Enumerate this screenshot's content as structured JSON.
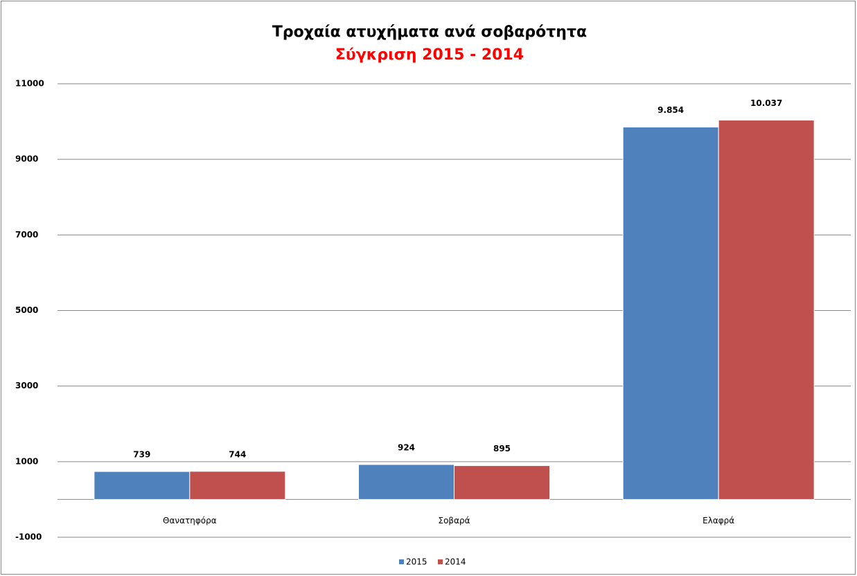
{
  "chart_data": {
    "type": "bar",
    "title": "Τροχαία ατυχήματα ανά σοβαρότητα",
    "subtitle": "Σύγκριση 2015 - 2014",
    "categories": [
      "Θανατηφόρα",
      "Σοβαρά",
      "Ελαφρά"
    ],
    "series": [
      {
        "name": "2015",
        "color": "#4f81bd",
        "values": [
          739,
          924,
          9854
        ],
        "value_labels": [
          "739",
          "924",
          "9.854"
        ]
      },
      {
        "name": "2014",
        "color": "#c0504d",
        "values": [
          744,
          895,
          10037
        ],
        "value_labels": [
          "744",
          "895",
          "10.037"
        ]
      }
    ],
    "ylim": [
      -1000,
      11000
    ],
    "yticks": [
      -1000,
      1000,
      3000,
      5000,
      7000,
      9000,
      11000
    ],
    "grid": true,
    "legend": "bottom"
  }
}
